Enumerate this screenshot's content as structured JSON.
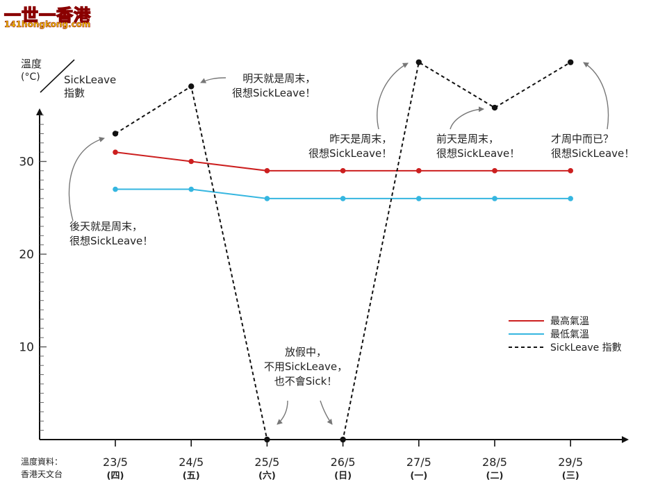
{
  "watermark": {
    "title": "一世一香港",
    "url": "141hongkong.com"
  },
  "source": {
    "line1": "溫度資料：",
    "line2": "香港天文台"
  },
  "chart_data": {
    "type": "line",
    "y_title": [
      "溫度",
      "(°C)"
    ],
    "y2_title": [
      "SickLeave",
      "指數"
    ],
    "categories": [
      "23/5",
      "24/5",
      "25/5",
      "26/5",
      "27/5",
      "28/5",
      "29/5"
    ],
    "category_days": [
      "(四)",
      "(五)",
      "(六)",
      "(日)",
      "(一)",
      "(二)",
      "(三)"
    ],
    "yticks": [
      10,
      20,
      30
    ],
    "ylim": [
      0,
      37
    ],
    "grid": false,
    "legend_position": "right",
    "series": [
      {
        "name": "最高氣溫",
        "color": "#cc1f1f",
        "style": "solid-markers",
        "values": [
          31,
          30,
          29,
          29,
          29,
          29,
          29
        ]
      },
      {
        "name": "最低氣溫",
        "color": "#35b6e0",
        "style": "solid-markers",
        "values": [
          27,
          27,
          26,
          26,
          26,
          26,
          26
        ]
      },
      {
        "name": "SickLeave 指數",
        "color": "#111111",
        "style": "dashed-markers",
        "values": [
          33,
          38.1,
          0,
          0,
          40.7,
          35.8,
          40.7
        ]
      }
    ],
    "annotations": [
      {
        "id": "a1",
        "lines": [
          "後天就是周末，",
          "很想SickLeave！"
        ]
      },
      {
        "id": "a2",
        "lines": [
          "明天就是周末，",
          "很想SickLeave！"
        ]
      },
      {
        "id": "a3",
        "lines": [
          "放假中，",
          "不用SickLeave，",
          "也不會Sick！"
        ]
      },
      {
        "id": "a4",
        "lines": [
          "昨天是周末，",
          "很想SickLeave！"
        ]
      },
      {
        "id": "a5",
        "lines": [
          "前天是周末，",
          "很想SickLeave！"
        ]
      },
      {
        "id": "a6",
        "lines": [
          "才周中而已？",
          "很想SickLeave！"
        ]
      }
    ]
  }
}
